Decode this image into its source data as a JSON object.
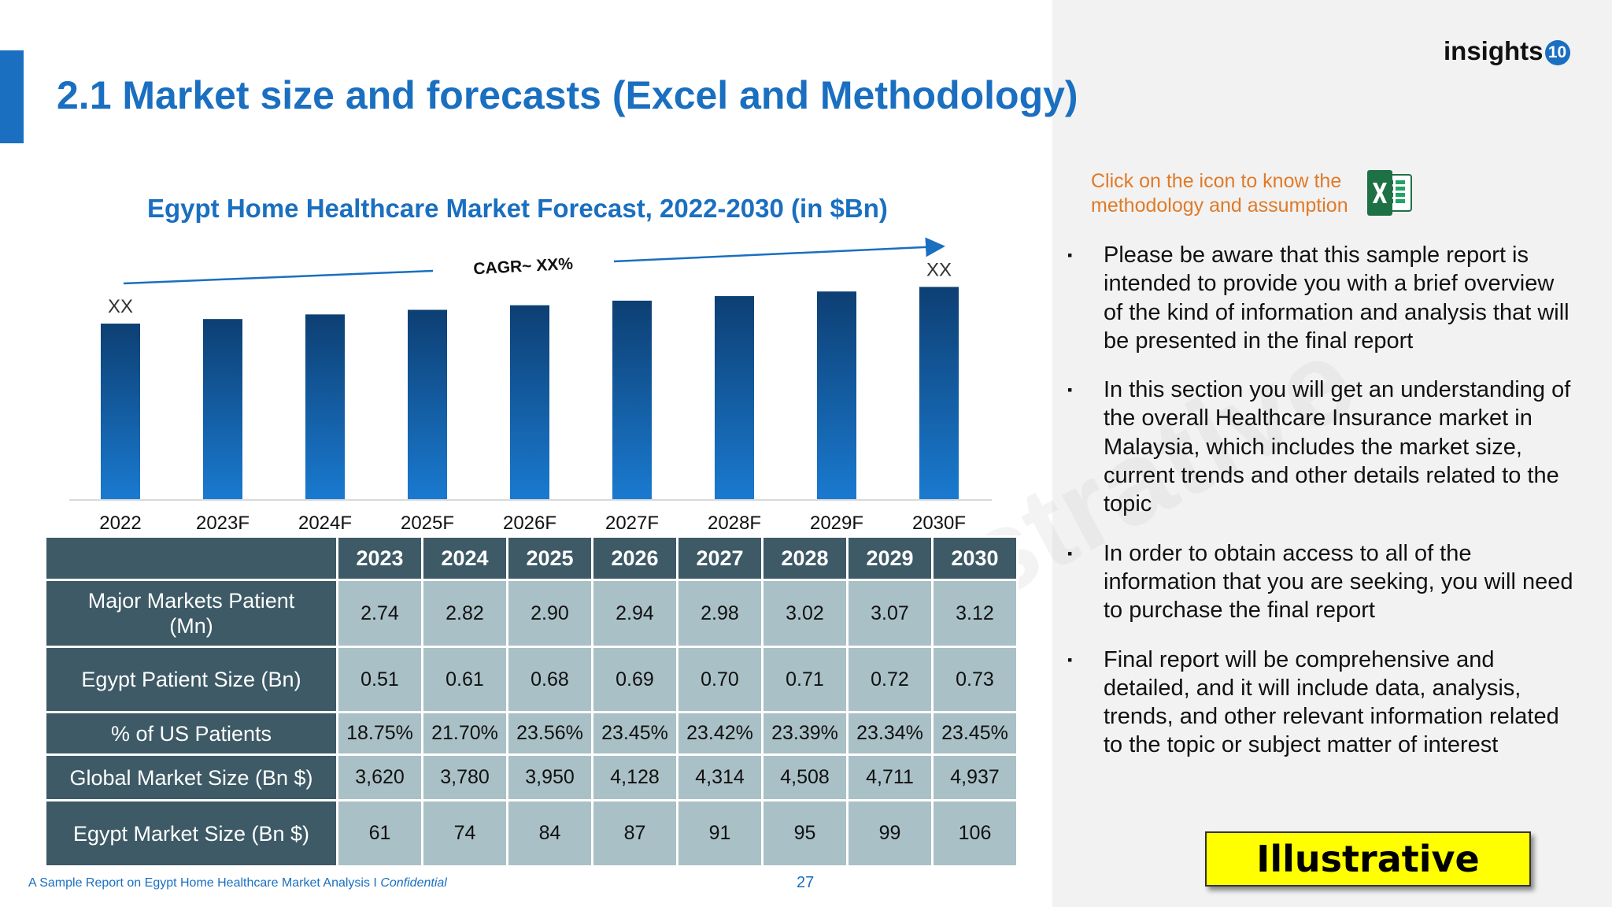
{
  "slide": {
    "title": "2.1 Market size and forecasts (Excel and Methodology)",
    "logo_text": "insights",
    "logo_badge": "10"
  },
  "chart_data": {
    "type": "bar",
    "title": "Egypt Home Healthcare Market Forecast, 2022-2030 (in $Bn)",
    "categories": [
      "2022",
      "2023F",
      "2024F",
      "2025F",
      "2026F",
      "2027F",
      "2028F",
      "2029F",
      "2030F"
    ],
    "values": [
      100,
      102.6,
      105.2,
      107.8,
      110.4,
      113.0,
      115.6,
      118.2,
      120.8
    ],
    "ylim": [
      0,
      125
    ],
    "data_labels": {
      "first": "XX",
      "last": "XX"
    },
    "annotation": "CAGR~ XX%",
    "xlabel": "",
    "ylabel": "",
    "grid": false,
    "colors": {
      "bar_top": "#0d3f73",
      "bar_bottom": "#1a7ad0"
    }
  },
  "table": {
    "columns": [
      "2023",
      "2024",
      "2025",
      "2026",
      "2027",
      "2028",
      "2029",
      "2030"
    ],
    "rows": [
      {
        "label": "Major Markets Patient (Mn)",
        "values": [
          "2.74",
          "2.82",
          "2.90",
          "2.94",
          "2.98",
          "3.02",
          "3.07",
          "3.12"
        ]
      },
      {
        "label": "Egypt Patient Size (Bn)",
        "values": [
          "0.51",
          "0.61",
          "0.68",
          "0.69",
          "0.70",
          "0.71",
          "0.72",
          "0.73"
        ]
      },
      {
        "label": "% of US Patients",
        "values": [
          "18.75%",
          "21.70%",
          "23.56%",
          "23.45%",
          "23.42%",
          "23.39%",
          "23.34%",
          "23.45%"
        ]
      },
      {
        "label": "Global Market Size (Bn $)",
        "values": [
          "3,620",
          "3,780",
          "3,950",
          "4,128",
          "4,314",
          "4,508",
          "4,711",
          "4,937"
        ]
      },
      {
        "label": "Egypt Market Size (Bn $)",
        "values": [
          "61",
          "74",
          "84",
          "87",
          "91",
          "95",
          "99",
          "106"
        ]
      }
    ]
  },
  "side": {
    "instruction": "Click on the icon to know the methodology and assumption",
    "excel_icon": "excel-icon",
    "bullet_mark": "▪",
    "bullets": [
      "Please be aware that this sample report is intended to provide you with a brief overview of the kind of information and analysis that will be presented in the final report",
      "In this section you will get an understanding of the overall Healthcare Insurance market in Malaysia, which includes the market size, current trends and other details related to the topic",
      "In order to obtain access to all of the information that you are seeking, you will need to purchase the final report",
      "Final report will be comprehensive and detailed, and it will include data, analysis, trends, and other relevant information related to the topic or subject matter of interest"
    ],
    "badge": "Illustrative"
  },
  "watermark": "Illustrative",
  "footer": {
    "text": "A Sample Report on Egypt Home Healthcare Market Analysis I ",
    "confidential": "Confidential",
    "page": "27"
  }
}
